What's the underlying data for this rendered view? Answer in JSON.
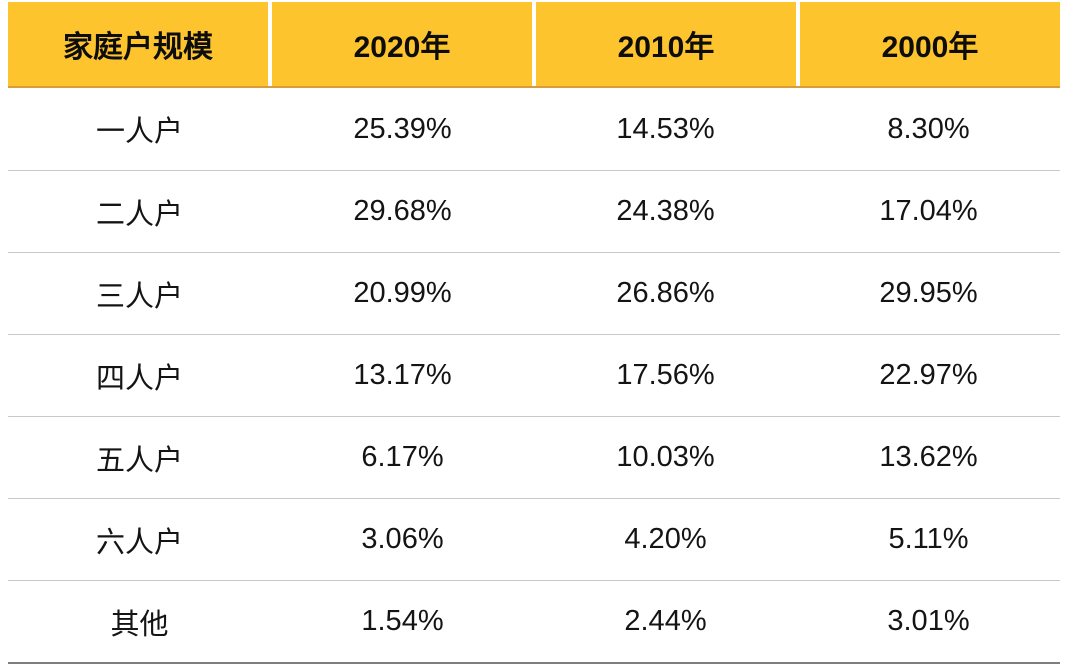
{
  "table": {
    "columns": [
      "家庭户规模",
      "2020年",
      "2010年",
      "2000年"
    ],
    "rows": [
      {
        "label": "一人户",
        "values": [
          "25.39%",
          "14.53%",
          "8.30%"
        ]
      },
      {
        "label": "二人户",
        "values": [
          "29.68%",
          "24.38%",
          "17.04%"
        ]
      },
      {
        "label": "三人户",
        "values": [
          "20.99%",
          "26.86%",
          "29.95%"
        ]
      },
      {
        "label": "四人户",
        "values": [
          "13.17%",
          "17.56%",
          "22.97%"
        ]
      },
      {
        "label": "五人户",
        "values": [
          "6.17%",
          "10.03%",
          "13.62%"
        ]
      },
      {
        "label": "六人户",
        "values": [
          "3.06%",
          "4.20%",
          "5.11%"
        ]
      },
      {
        "label": "其他",
        "values": [
          "1.54%",
          "2.44%",
          "3.01%"
        ]
      }
    ]
  },
  "colors": {
    "header_background": "#FDC42E",
    "header_bottom_border": "#D99B3C",
    "header_text": "#0d0d0d",
    "row_divider": "#C9C9C9",
    "table_bottom_border": "#7E7E7E",
    "body_text": "#141414",
    "page_background": "#ffffff"
  },
  "chart_data": {
    "type": "table",
    "title": "",
    "columns": [
      "家庭户规模",
      "2020年",
      "2010年",
      "2000年"
    ],
    "categories": [
      "一人户",
      "二人户",
      "三人户",
      "四人户",
      "五人户",
      "六人户",
      "其他"
    ],
    "series": [
      {
        "name": "2020年",
        "values": [
          25.39,
          29.68,
          20.99,
          13.17,
          6.17,
          3.06,
          1.54
        ]
      },
      {
        "name": "2010年",
        "values": [
          14.53,
          24.38,
          26.86,
          17.56,
          10.03,
          4.2,
          2.44
        ]
      },
      {
        "name": "2000年",
        "values": [
          8.3,
          17.04,
          29.95,
          22.97,
          13.62,
          5.11,
          3.01
        ]
      }
    ],
    "value_unit": "%"
  }
}
